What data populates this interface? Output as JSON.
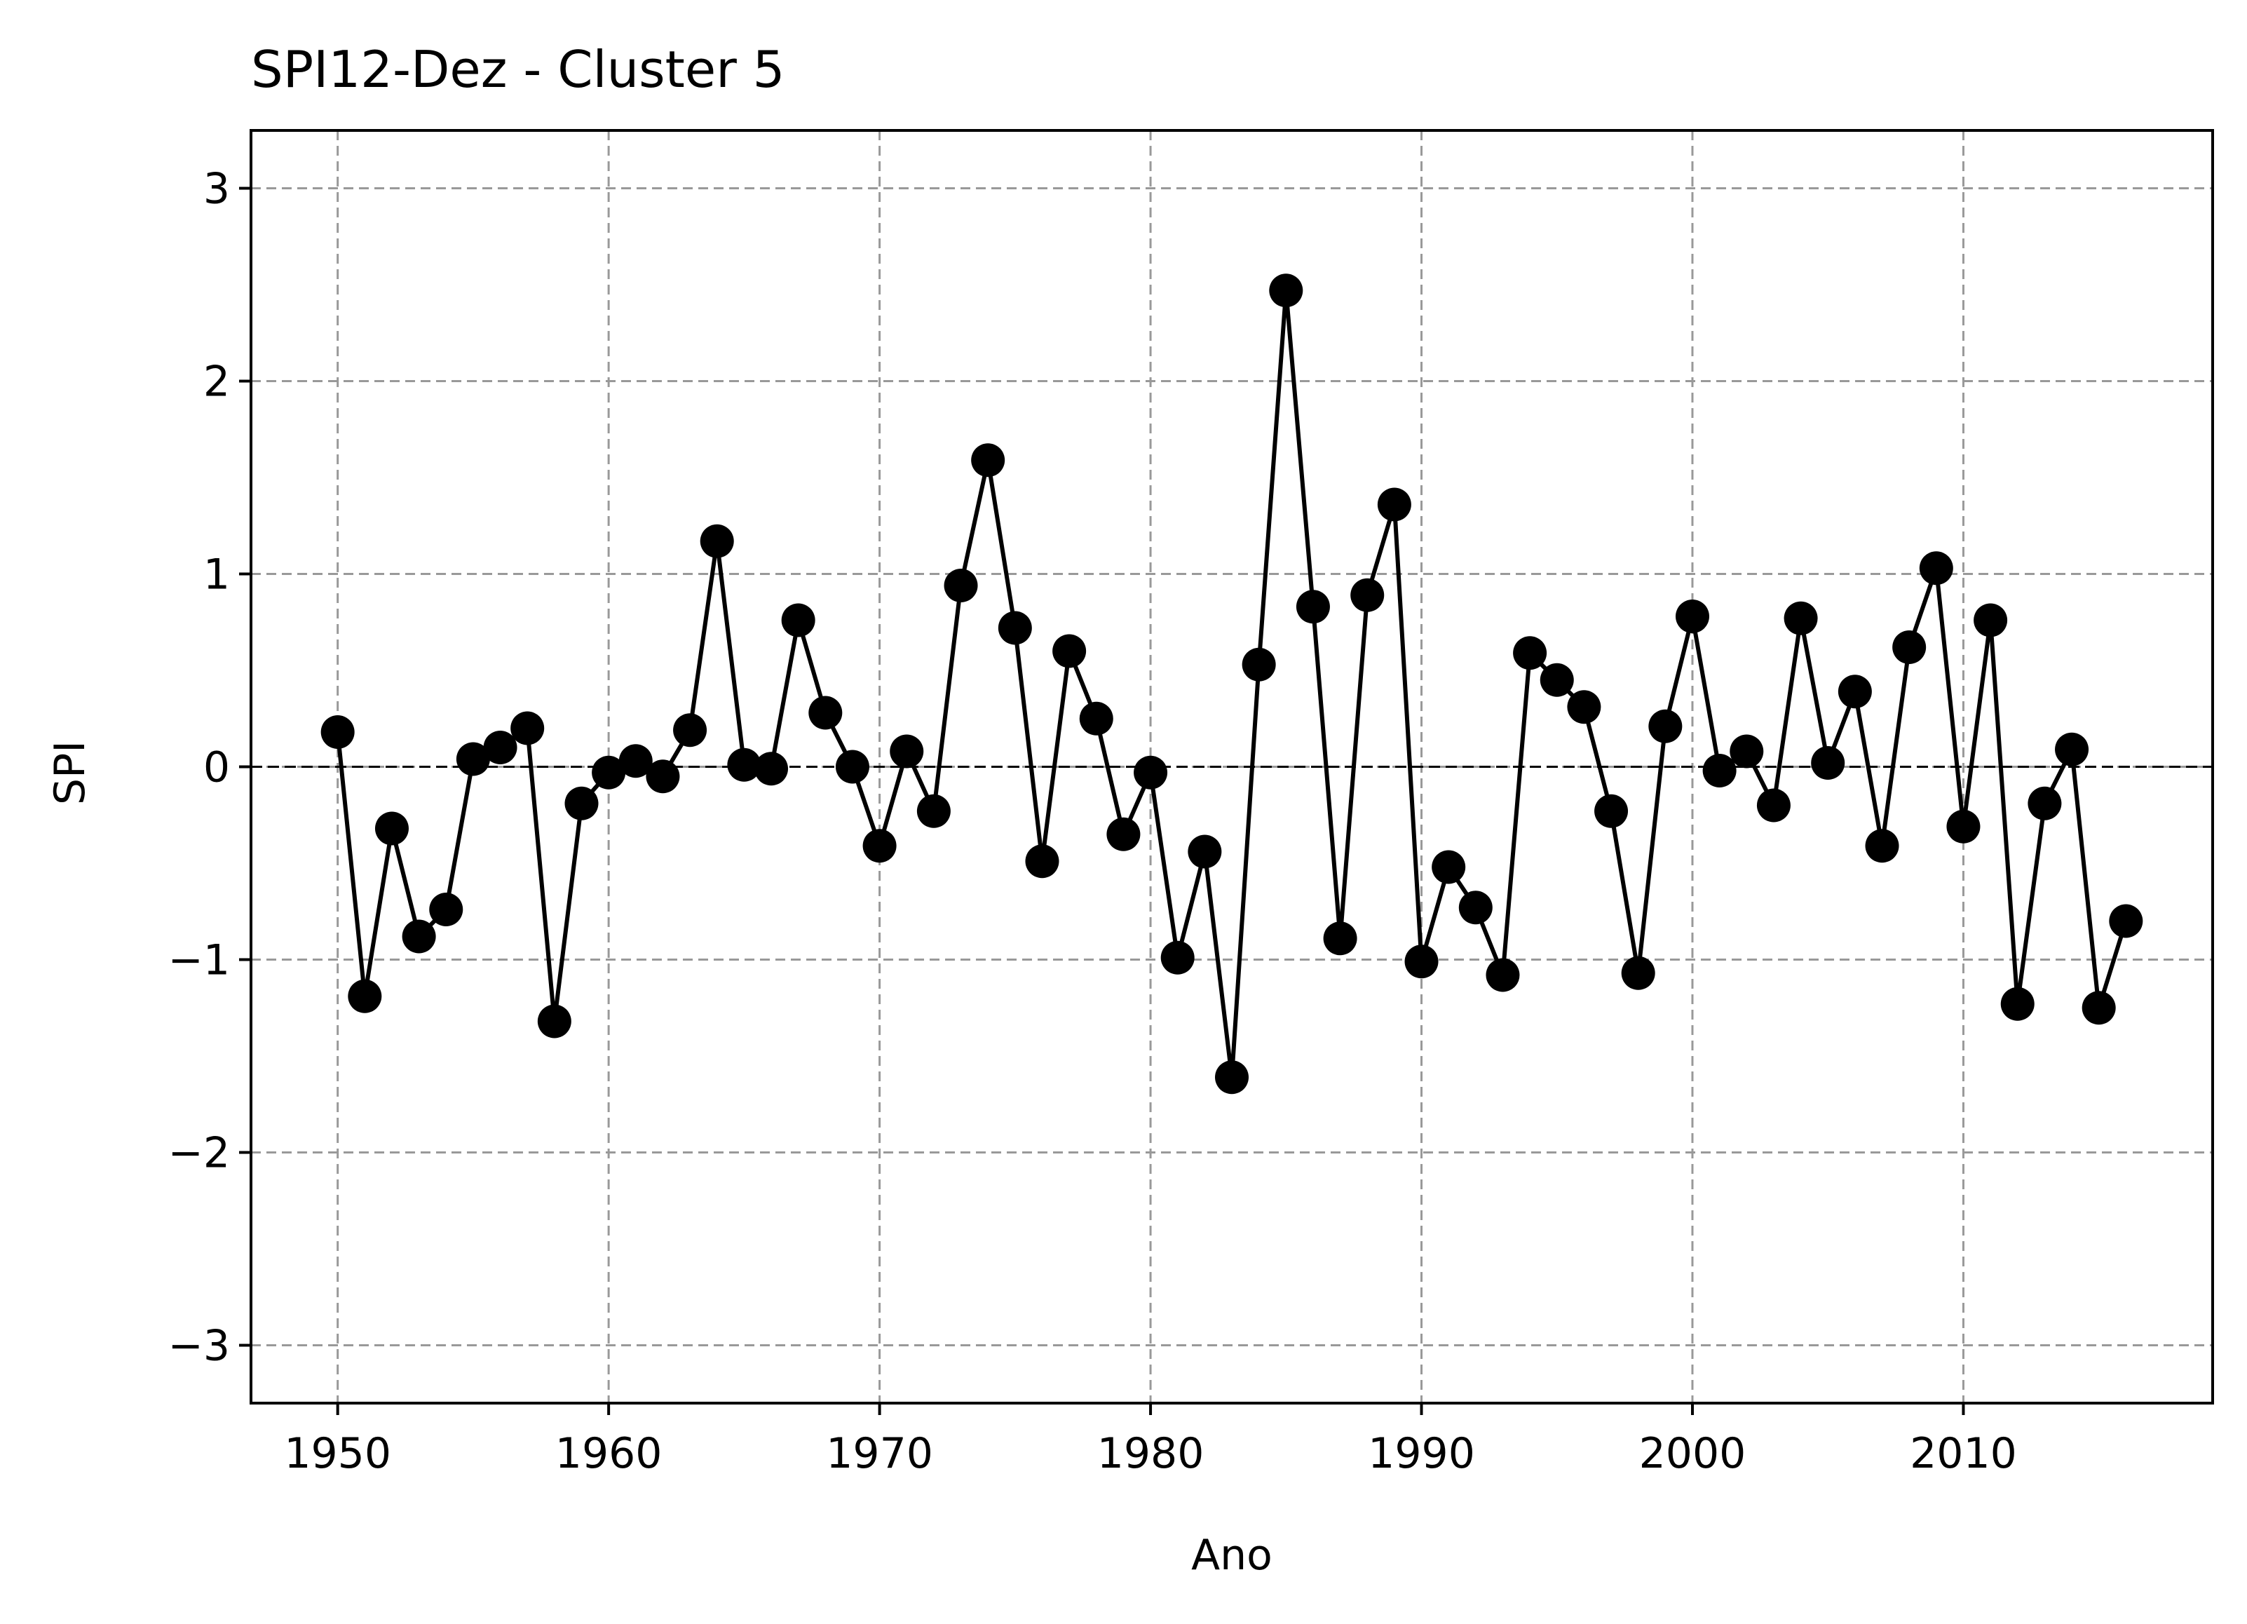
{
  "chart_data": {
    "type": "line",
    "title": "SPI12-Dez - Cluster 5",
    "xlabel": "Ano",
    "ylabel": "SPI",
    "xlim": [
      1946.8,
      2019.2
    ],
    "ylim": [
      -3.3,
      3.3
    ],
    "xticks": [
      1950,
      1960,
      1970,
      1980,
      1990,
      2000,
      2010
    ],
    "yticks": [
      -3,
      -2,
      -1,
      0,
      1,
      2,
      3
    ],
    "ytick_labels": [
      "−3",
      "−2",
      "−1",
      "0",
      "1",
      "2",
      "3"
    ],
    "grid": true,
    "reference_line_y": 0,
    "colors": {
      "series": "#000000",
      "grid": "#999999",
      "reference": "#000000"
    },
    "series": [
      {
        "x": [
          1950,
          1951,
          1952,
          1953,
          1954,
          1955,
          1956,
          1957,
          1958,
          1959,
          1960,
          1961,
          1962,
          1963,
          1964,
          1965,
          1966,
          1967,
          1968,
          1969,
          1970,
          1971,
          1972,
          1973,
          1974,
          1975,
          1976,
          1977,
          1978,
          1979,
          1980,
          1981,
          1982,
          1983,
          1984,
          1985,
          1986,
          1987,
          1988,
          1989,
          1990,
          1991,
          1992,
          1993,
          1994,
          1995,
          1996,
          1997,
          1998,
          1999,
          2000,
          2001,
          2002,
          2003,
          2004,
          2005,
          2006,
          2007,
          2008,
          2009,
          2010,
          2011,
          2012,
          2013,
          2014,
          2015,
          2016
        ],
        "values": [
          0.18,
          -1.19,
          -0.32,
          -0.88,
          -0.74,
          0.04,
          0.1,
          0.2,
          -1.32,
          -0.19,
          -0.03,
          0.03,
          -0.05,
          0.19,
          1.17,
          0.01,
          -0.01,
          0.76,
          0.28,
          0.0,
          -0.41,
          0.08,
          -0.23,
          0.94,
          1.59,
          0.72,
          -0.49,
          0.6,
          0.25,
          -0.35,
          -0.03,
          -0.99,
          -0.44,
          -1.61,
          0.53,
          2.47,
          0.83,
          -0.89,
          0.89,
          1.36,
          -1.01,
          -0.52,
          -0.73,
          -1.08,
          0.59,
          0.45,
          0.31,
          -0.23,
          -1.07,
          0.21,
          0.78,
          -0.02,
          0.08,
          -0.2,
          0.77,
          0.02,
          0.39,
          -0.41,
          0.62,
          1.03,
          -0.31,
          0.76,
          -1.23,
          -0.19,
          0.09,
          -1.25,
          -0.8
        ]
      }
    ]
  }
}
